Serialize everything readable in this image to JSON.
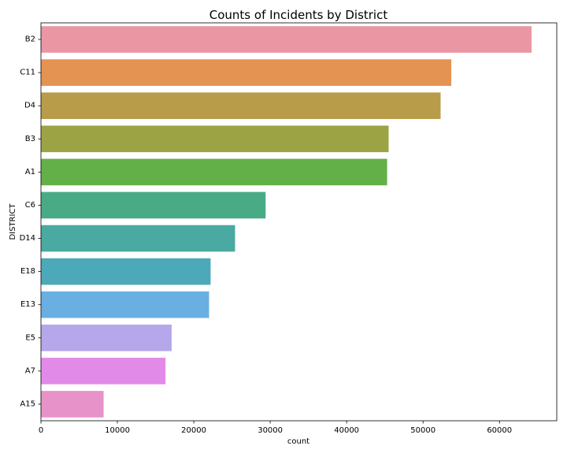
{
  "chart_data": {
    "type": "bar",
    "orientation": "horizontal",
    "title": "Counts of Incidents by District",
    "xlabel": "count",
    "ylabel": "DISTRICT",
    "xlim": [
      0,
      67500
    ],
    "xticks": [
      0,
      10000,
      20000,
      30000,
      40000,
      50000,
      60000
    ],
    "xtick_labels": [
      "0",
      "10000",
      "20000",
      "30000",
      "40000",
      "50000",
      "60000"
    ],
    "grid": false,
    "categories": [
      "B2",
      "C11",
      "D4",
      "B3",
      "A1",
      "C6",
      "D14",
      "E18",
      "E13",
      "E5",
      "A7",
      "A15"
    ],
    "values": [
      64200,
      53700,
      52300,
      45500,
      45300,
      29400,
      25400,
      22200,
      22000,
      17100,
      16300,
      8200
    ],
    "colors": [
      "#ea96a3",
      "#e59352",
      "#b89c49",
      "#9ba344",
      "#63b048",
      "#49ab86",
      "#4aa9a0",
      "#4ba9b9",
      "#6aafe2",
      "#b5a7e9",
      "#e28ae8",
      "#e792c9"
    ]
  }
}
